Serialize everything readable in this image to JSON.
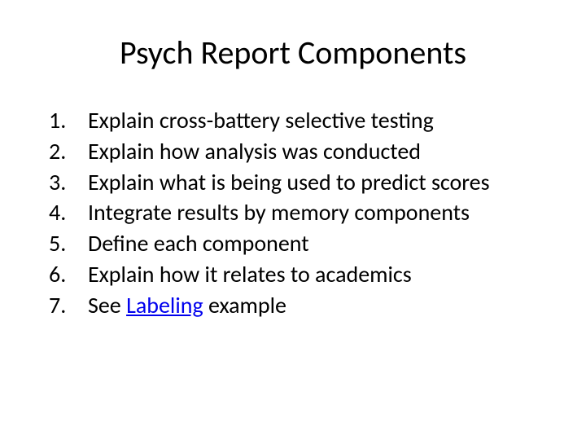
{
  "slide": {
    "title": "Psych Report Components",
    "title_fontsize": 40,
    "title_color": "#000000",
    "background_color": "#ffffff",
    "items": [
      {
        "number": "1.",
        "text": "Explain cross-battery selective testing",
        "has_link": false
      },
      {
        "number": "2.",
        "text": "Explain how analysis was conducted",
        "has_link": false
      },
      {
        "number": "3.",
        "text": "Explain what is being used to predict scores",
        "has_link": false
      },
      {
        "number": "4.",
        "text": "Integrate results by memory components",
        "has_link": false
      },
      {
        "number": "5.",
        "text": "Define each component",
        "has_link": false
      },
      {
        "number": "6.",
        "text": "Explain how it relates to academics",
        "has_link": false
      },
      {
        "number": "7.",
        "prefix": "See ",
        "link_text": "Labeling",
        "suffix": " example",
        "has_link": true
      }
    ],
    "item_fontsize": 28,
    "item_color": "#000000",
    "link_color": "#0000ee",
    "font_family": "Calibri"
  }
}
